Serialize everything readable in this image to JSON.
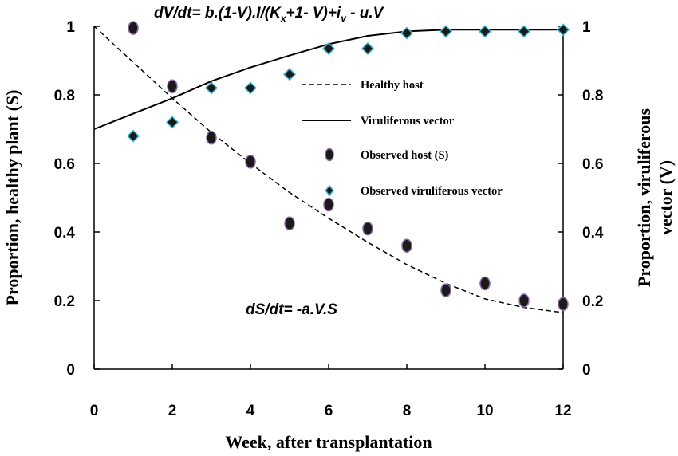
{
  "chart_data": {
    "type": "scatter",
    "xlabel": "Week,  after transplantation",
    "ylabel_left": "Proportion, healthy plant (S)",
    "ylabel_right_line1": "Proportion, viruliferous",
    "ylabel_right_line2": "vector  (V)",
    "xlim": [
      0,
      12
    ],
    "ylim": [
      0,
      1
    ],
    "x_ticks": [
      "0",
      "2",
      "4",
      "6",
      "8",
      "10",
      "12"
    ],
    "y_ticks": [
      "0",
      "0.2",
      "0.4",
      "0.6",
      "0.8",
      "1"
    ],
    "grid": false,
    "legend_position": "center-right",
    "equation_top": {
      "main": "dV/dt= b.(1-V).I/(K",
      "sub1": "x",
      "mid": "+1- V)+i",
      "sub2": "v",
      "end": " - u.V"
    },
    "equation_bottom": "dS/dt= -a.V.S",
    "series": [
      {
        "name": "Healthy host",
        "style": "dashed-line",
        "color": "#000000",
        "x": [
          0,
          1,
          2,
          3,
          4,
          5,
          6,
          7,
          8,
          9,
          10,
          11,
          12
        ],
        "y": [
          1.0,
          0.895,
          0.79,
          0.69,
          0.6,
          0.515,
          0.44,
          0.37,
          0.305,
          0.25,
          0.205,
          0.18,
          0.165
        ]
      },
      {
        "name": "Viruliferous vector",
        "style": "solid-line",
        "color": "#000000",
        "x": [
          0,
          1,
          2,
          3,
          4,
          5,
          6,
          7,
          8,
          9,
          10,
          11,
          12
        ],
        "y": [
          0.7,
          0.745,
          0.79,
          0.84,
          0.88,
          0.915,
          0.948,
          0.972,
          0.985,
          0.99,
          0.99,
          0.99,
          0.99
        ]
      },
      {
        "name": "Observed host (S)",
        "style": "circle-marker",
        "color": "#1a1a1a",
        "edge": "#8e6aa8",
        "x": [
          1,
          2,
          3,
          4,
          5,
          6,
          7,
          8,
          9,
          10,
          11,
          12
        ],
        "y": [
          0.995,
          0.825,
          0.675,
          0.605,
          0.425,
          0.48,
          0.41,
          0.36,
          0.23,
          0.25,
          0.2,
          0.19
        ]
      },
      {
        "name": "Observed viruliferous vector",
        "style": "diamond-marker",
        "color": "#1a1a1a",
        "edge": "#3ab7d0",
        "x": [
          1,
          2,
          3,
          4,
          5,
          6,
          7,
          8,
          9,
          10,
          11,
          12
        ],
        "y": [
          0.68,
          0.72,
          0.82,
          0.82,
          0.86,
          0.935,
          0.935,
          0.98,
          0.985,
          0.985,
          0.985,
          0.99
        ]
      }
    ]
  }
}
